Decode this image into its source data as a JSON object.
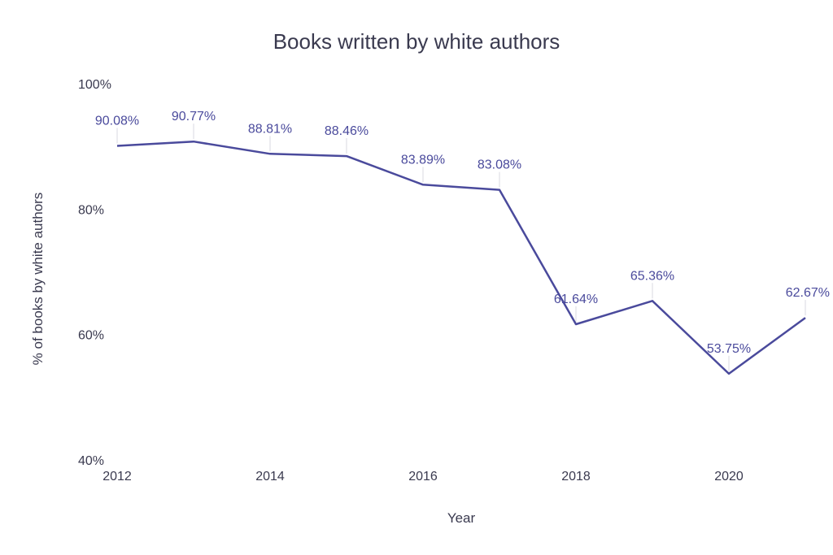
{
  "chart_data": {
    "type": "line",
    "title": "Books written by white authors",
    "xlabel": "Year",
    "ylabel": "% of books by white authors",
    "x": [
      2012,
      2013,
      2014,
      2015,
      2016,
      2017,
      2018,
      2019,
      2020,
      2021
    ],
    "series": [
      {
        "values": [
          90.08,
          90.77,
          88.81,
          88.46,
          83.89,
          83.08,
          61.64,
          65.36,
          53.75,
          62.67
        ]
      }
    ],
    "data_labels": [
      "90.08%",
      "90.77%",
      "88.81%",
      "88.46%",
      "83.89%",
      "83.08%",
      "61.64%",
      "65.36%",
      "53.75%",
      "62.67%"
    ],
    "x_ticks": [
      "2012",
      "2014",
      "2016",
      "2018",
      "2020"
    ],
    "y_ticks": [
      "100%",
      "80%",
      "60%",
      "40%"
    ],
    "ylim": [
      40,
      100
    ],
    "xlim": [
      2012,
      2021
    ],
    "grid": false,
    "legend": "none",
    "line_color": "#4a4a9c",
    "label_color": "#4a4a9c"
  }
}
